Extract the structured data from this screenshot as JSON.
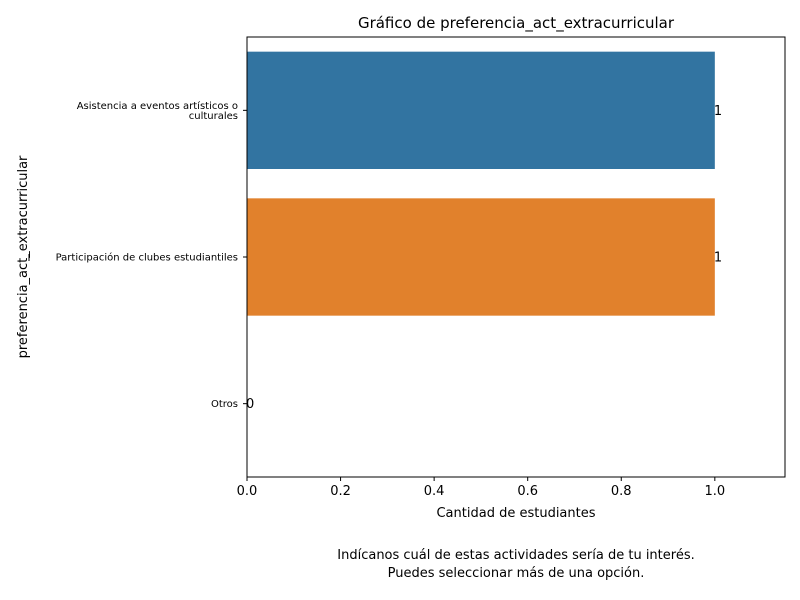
{
  "chart_data": {
    "type": "bar",
    "orientation": "horizontal",
    "title": "Gráfico de preferencia_act_extracurricular",
    "xlabel": "Cantidad de estudiantes",
    "ylabel": "preferencia_act_extracurricular",
    "categories": [
      [
        "Asistencia a eventos artísticos o",
        "culturales"
      ],
      [
        "Participación de clubes estudiantiles"
      ],
      [
        "Otros"
      ]
    ],
    "values": [
      1,
      1,
      0
    ],
    "data_labels": [
      "1",
      "1",
      "0"
    ],
    "colors": [
      "#3274a1",
      "#e1812c",
      "#3a923a"
    ],
    "xlim": [
      0,
      1.15
    ],
    "xticks": [
      0.0,
      0.2,
      0.4,
      0.6,
      0.8,
      1.0
    ],
    "xtick_labels": [
      "0.0",
      "0.2",
      "0.4",
      "0.6",
      "0.8",
      "1.0"
    ],
    "grid": false,
    "legend": "none"
  },
  "caption": {
    "line1": "Indícanos cuál de estas actividades sería de tu interés.",
    "line2": "Puedes seleccionar más de una opción."
  }
}
